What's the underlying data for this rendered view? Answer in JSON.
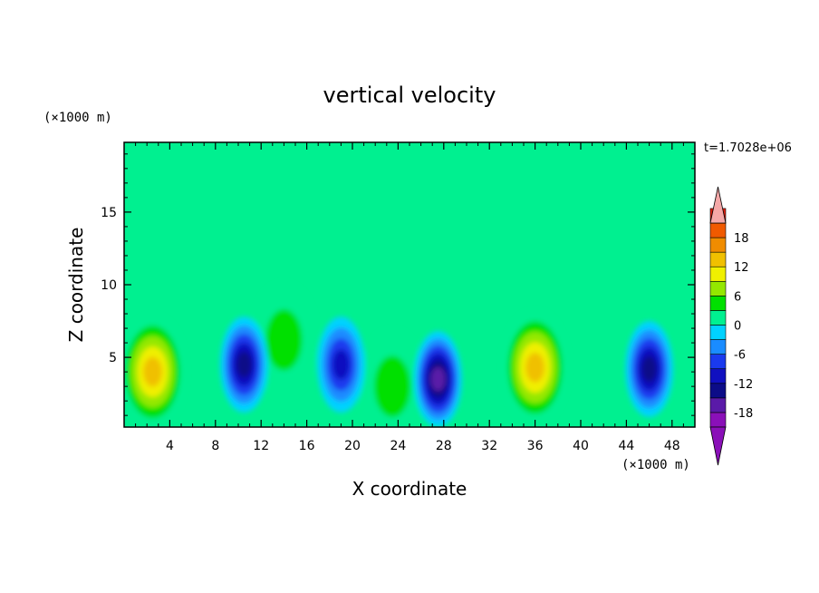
{
  "chart_data": {
    "type": "heatmap",
    "title": "vertical velocity",
    "xlabel": "X coordinate",
    "ylabel": "Z coordinate",
    "x_unit": "(×1000 m)",
    "y_unit": "(×1000 m)",
    "time_label": "t=1.7028e+06",
    "xlim": [
      0,
      50
    ],
    "ylim": [
      0.2,
      19.8
    ],
    "x_ticks": [
      4,
      8,
      12,
      16,
      20,
      24,
      28,
      32,
      36,
      40,
      44,
      48
    ],
    "y_ticks": [
      5,
      10,
      15
    ],
    "x_tick_labels": [
      "4",
      "8",
      "12",
      "16",
      "20",
      "24",
      "28",
      "32",
      "36",
      "40",
      "44",
      "48"
    ],
    "y_tick_labels": [
      "5",
      "10",
      "15"
    ],
    "colorbar": {
      "min": -21,
      "max": 21,
      "step": 3,
      "tick_values": [
        18,
        12,
        6,
        0,
        -6,
        -12,
        -18
      ],
      "tick_labels": [
        "18",
        "12",
        "6",
        "0",
        "-6",
        "-12",
        "-18"
      ],
      "colors": [
        "#8a10b8",
        "#5a1aa8",
        "#0c0c88",
        "#1010c0",
        "#1a3aee",
        "#1a8cff",
        "#00d2ff",
        "#00f090",
        "#00e000",
        "#94e800",
        "#f0f000",
        "#f0c000",
        "#f08c00",
        "#f05a00",
        "#e02010"
      ],
      "extend_low_color": "#8a10b8",
      "extend_high_color": "#f5a8a8"
    },
    "features": [
      {
        "x": 2.5,
        "z": 4.0,
        "value": 15,
        "kind": "updraft"
      },
      {
        "x": 36.0,
        "z": 4.3,
        "value": 14,
        "kind": "updraft"
      },
      {
        "x": 14.0,
        "z": 6.2,
        "value": 6,
        "kind": "updraft"
      },
      {
        "x": 23.5,
        "z": 3.0,
        "value": 4,
        "kind": "updraft"
      },
      {
        "x": 10.5,
        "z": 4.5,
        "value": -15,
        "kind": "downdraft"
      },
      {
        "x": 27.5,
        "z": 3.5,
        "value": -17,
        "kind": "downdraft"
      },
      {
        "x": 46.0,
        "z": 4.2,
        "value": -15,
        "kind": "downdraft"
      },
      {
        "x": 19.0,
        "z": 4.5,
        "value": -10,
        "kind": "downdraft"
      }
    ]
  }
}
